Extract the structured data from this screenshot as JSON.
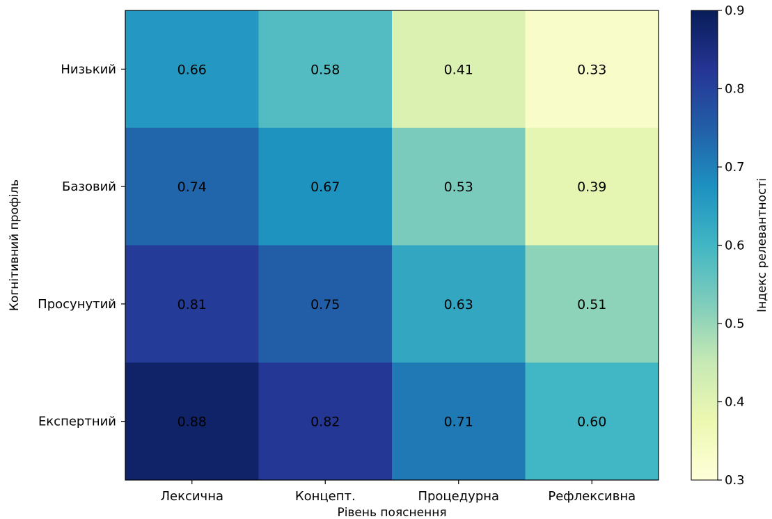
{
  "chart_data": {
    "type": "heatmap",
    "title": "",
    "xlabel": "Рівень пояснення",
    "ylabel": "Когнітивний профіль",
    "x_categories": [
      "Лексична",
      "Концепт.",
      "Процедурна",
      "Рефлексивна"
    ],
    "y_categories": [
      "Низький",
      "Базовий",
      "Просунутий",
      "Експертний"
    ],
    "values": [
      [
        0.66,
        0.58,
        0.41,
        0.33
      ],
      [
        0.74,
        0.67,
        0.53,
        0.39
      ],
      [
        0.81,
        0.75,
        0.63,
        0.51
      ],
      [
        0.88,
        0.82,
        0.71,
        0.6
      ]
    ],
    "value_labels": [
      [
        "0.66",
        "0.58",
        "0.41",
        "0.33"
      ],
      [
        "0.74",
        "0.67",
        "0.53",
        "0.39"
      ],
      [
        "0.81",
        "0.75",
        "0.63",
        "0.51"
      ],
      [
        "0.88",
        "0.82",
        "0.71",
        "0.60"
      ]
    ],
    "colormap": "YlGnBu",
    "colorbar": {
      "label": "Індекс релевантності",
      "range": [
        0.3,
        0.9
      ],
      "ticks": [
        "0.3",
        "0.4",
        "0.5",
        "0.6",
        "0.7",
        "0.8",
        "0.9"
      ]
    }
  }
}
